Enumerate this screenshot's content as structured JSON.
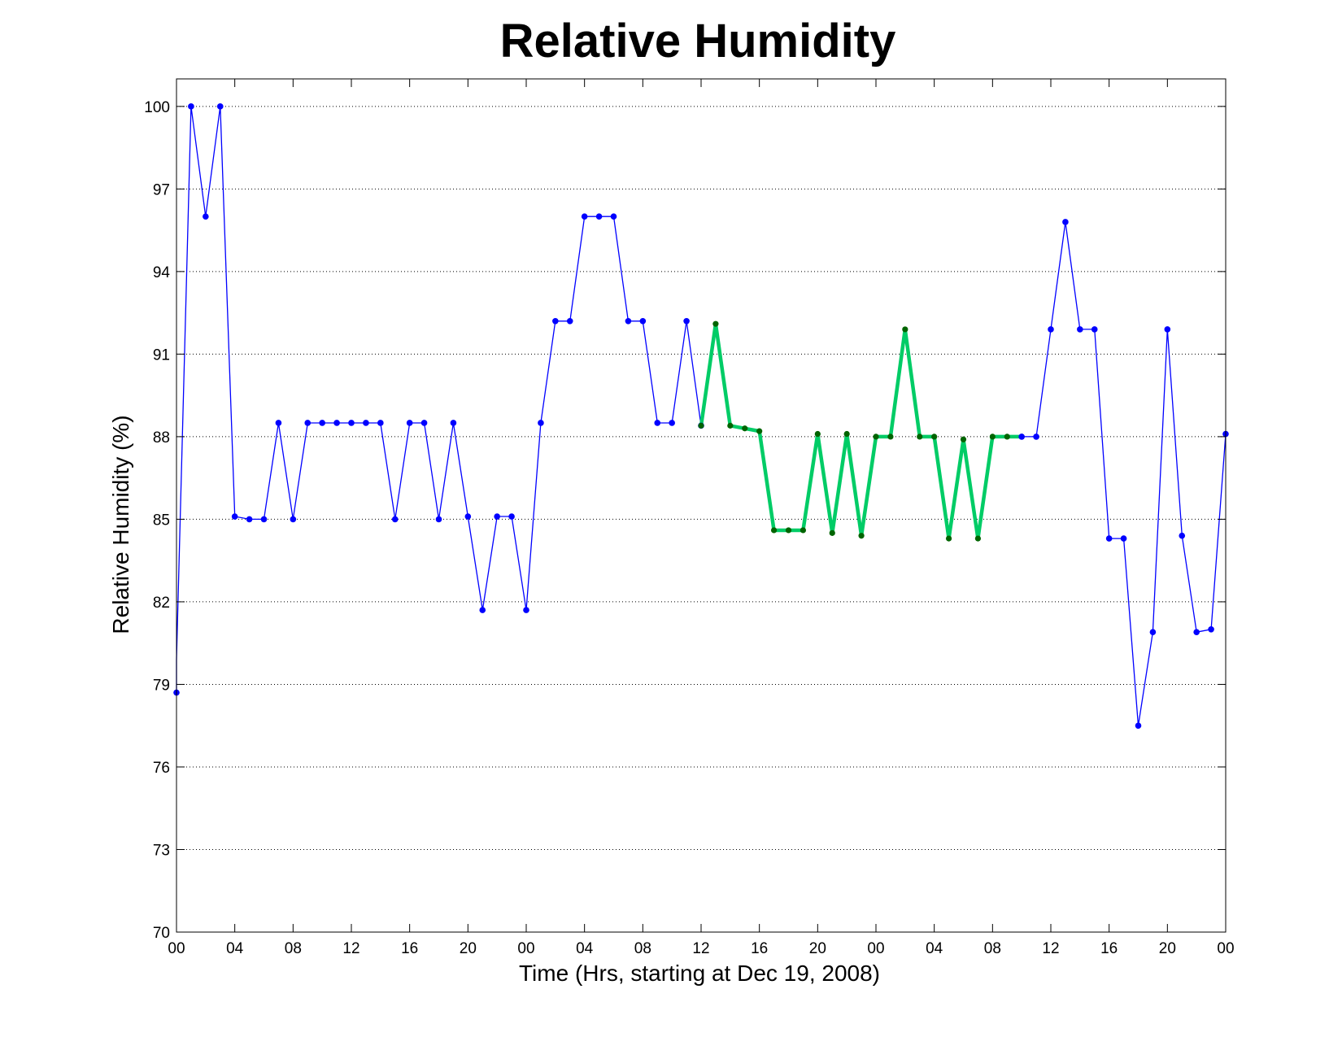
{
  "chart_data": {
    "type": "line",
    "title": "Relative Humidity",
    "xlabel": "Time (Hrs, starting at Dec 19, 2008)",
    "ylabel": "Relative Humidity (%)",
    "xlim": [
      0,
      72
    ],
    "ylim": [
      70,
      101
    ],
    "yticks": [
      70,
      73,
      76,
      79,
      82,
      85,
      88,
      91,
      94,
      97,
      100
    ],
    "xticks": [
      {
        "x": 0,
        "label": "00"
      },
      {
        "x": 4,
        "label": "04"
      },
      {
        "x": 8,
        "label": "08"
      },
      {
        "x": 12,
        "label": "12"
      },
      {
        "x": 16,
        "label": "16"
      },
      {
        "x": 20,
        "label": "20"
      },
      {
        "x": 24,
        "label": "00"
      },
      {
        "x": 28,
        "label": "04"
      },
      {
        "x": 32,
        "label": "08"
      },
      {
        "x": 36,
        "label": "12"
      },
      {
        "x": 40,
        "label": "16"
      },
      {
        "x": 44,
        "label": "20"
      },
      {
        "x": 48,
        "label": "00"
      },
      {
        "x": 52,
        "label": "04"
      },
      {
        "x": 56,
        "label": "08"
      },
      {
        "x": 60,
        "label": "12"
      },
      {
        "x": 64,
        "label": "16"
      },
      {
        "x": 68,
        "label": "20"
      },
      {
        "x": 72,
        "label": "00"
      }
    ],
    "grid": "horizontal dotted",
    "colors": {
      "primary": "#0000ff",
      "highlight_line": "#00cc66",
      "highlight_marker": "#006400"
    },
    "series": [
      {
        "color": "#0000ff",
        "x": [
          0,
          0,
          1,
          2,
          3,
          4,
          5,
          6,
          7,
          8,
          9,
          10,
          11,
          12,
          13,
          14,
          15,
          16,
          17,
          18,
          19,
          20,
          21,
          22,
          23,
          24,
          25,
          26,
          27,
          28,
          29,
          30,
          31,
          32,
          33,
          34,
          35,
          36
        ],
        "y": [
          78.7,
          79.9,
          100.0,
          96.0,
          100.0,
          85.1,
          85.0,
          85.0,
          88.5,
          85.0,
          88.5,
          88.5,
          88.5,
          88.5,
          88.5,
          88.5,
          85.0,
          88.5,
          88.5,
          85.0,
          88.5,
          85.1,
          81.7,
          85.1,
          85.1,
          81.7,
          88.5,
          92.2,
          92.2,
          96.0,
          96.0,
          96.0,
          92.2,
          92.2,
          88.5,
          88.5,
          92.2,
          88.4
        ],
        "markers": [
          false,
          false,
          true,
          true,
          true,
          true,
          true,
          true,
          true,
          true,
          true,
          true,
          true,
          true,
          true,
          true,
          true,
          true,
          true,
          true,
          true,
          true,
          true,
          true,
          true,
          true,
          true,
          true,
          true,
          true,
          true,
          true,
          true,
          true,
          true,
          true,
          true,
          true
        ]
      },
      {
        "color": "#00cc66",
        "x": [
          36,
          37,
          38,
          39,
          40,
          41,
          42,
          43,
          44,
          45,
          46,
          47,
          48,
          49,
          50,
          51,
          52,
          53,
          54,
          55,
          56,
          57,
          58
        ],
        "y": [
          88.4,
          92.1,
          88.4,
          88.3,
          88.2,
          84.6,
          84.6,
          84.6,
          88.1,
          84.5,
          88.1,
          84.4,
          88.0,
          88.0,
          91.9,
          88.0,
          88.0,
          84.3,
          87.9,
          84.3,
          88.0,
          88.0,
          88.0
        ]
      },
      {
        "color": "#0000ff",
        "x": [
          58,
          59,
          60,
          61,
          62,
          63,
          64,
          65,
          66,
          67,
          68,
          69,
          70,
          71,
          72
        ],
        "y": [
          88.0,
          88.0,
          91.9,
          95.8,
          91.9,
          91.9,
          84.3,
          84.3,
          77.5,
          80.9,
          91.9,
          84.4,
          80.9,
          81.0,
          88.1
        ]
      }
    ]
  }
}
